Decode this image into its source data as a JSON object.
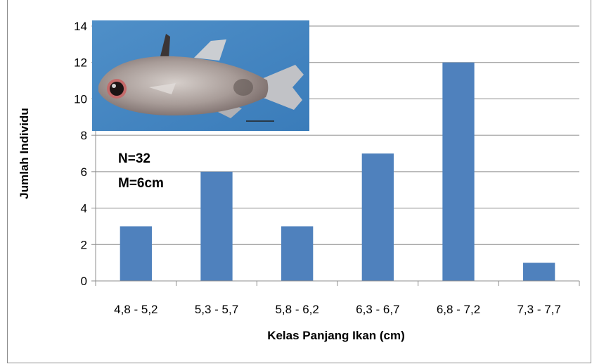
{
  "chart_data": {
    "type": "bar",
    "title": "",
    "xlabel": "Kelas Panjang Ikan (cm)",
    "ylabel": "Jumlah Individu",
    "ylim": [
      0,
      14
    ],
    "yticks": [
      0,
      2,
      4,
      6,
      8,
      10,
      12,
      14
    ],
    "categories": [
      "4,8 - 5,2",
      "5,3 - 5,7",
      "5,8 - 6,2",
      "6,3 - 6,7",
      "6,8 - 7,2",
      "7,3 - 7,7"
    ],
    "values": [
      3,
      6,
      3,
      7,
      12,
      1
    ],
    "bar_color": "#4f81bd",
    "grid": true,
    "annotations": [
      "N=32",
      "M=6cm"
    ],
    "inset_image": "fish-photo"
  }
}
